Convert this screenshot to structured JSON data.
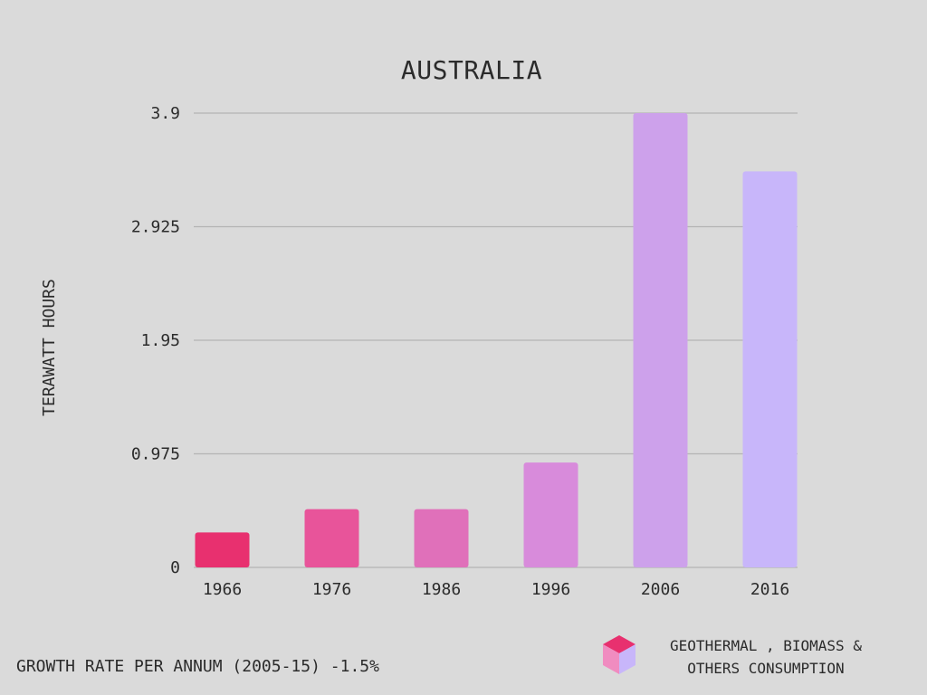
{
  "chart_data": {
    "type": "bar",
    "title": "AUSTRALIA",
    "xlabel": "",
    "ylabel": "TERAWATT HOURS",
    "categories": [
      "1966",
      "1976",
      "1986",
      "1996",
      "2006",
      "2016"
    ],
    "values": [
      0.3,
      0.5,
      0.5,
      0.9,
      3.9,
      3.4
    ],
    "ylim": [
      0,
      3.9
    ],
    "yticks": [
      "0",
      "0.975",
      "1.95",
      "2.925",
      "3.9"
    ],
    "ytick_values": [
      0,
      0.975,
      1.95,
      2.925,
      3.9
    ],
    "bar_colors": [
      "#e8306f",
      "#e8549a",
      "#e070ba",
      "#d88bdb",
      "#cda1eb",
      "#c8b6fa"
    ],
    "grid": true
  },
  "footer": {
    "growth_rate": "GROWTH RATE PER ANNUM (2005-15) -1.5%"
  },
  "legend": {
    "line1": "GEOTHERMAL , BIOMASS &",
    "line2": "OTHERS CONSUMPTION",
    "icon": "cube-icon",
    "icon_colors": {
      "top": "#e8306f",
      "left": "#f08cc0",
      "right": "#c8b6fa"
    }
  }
}
